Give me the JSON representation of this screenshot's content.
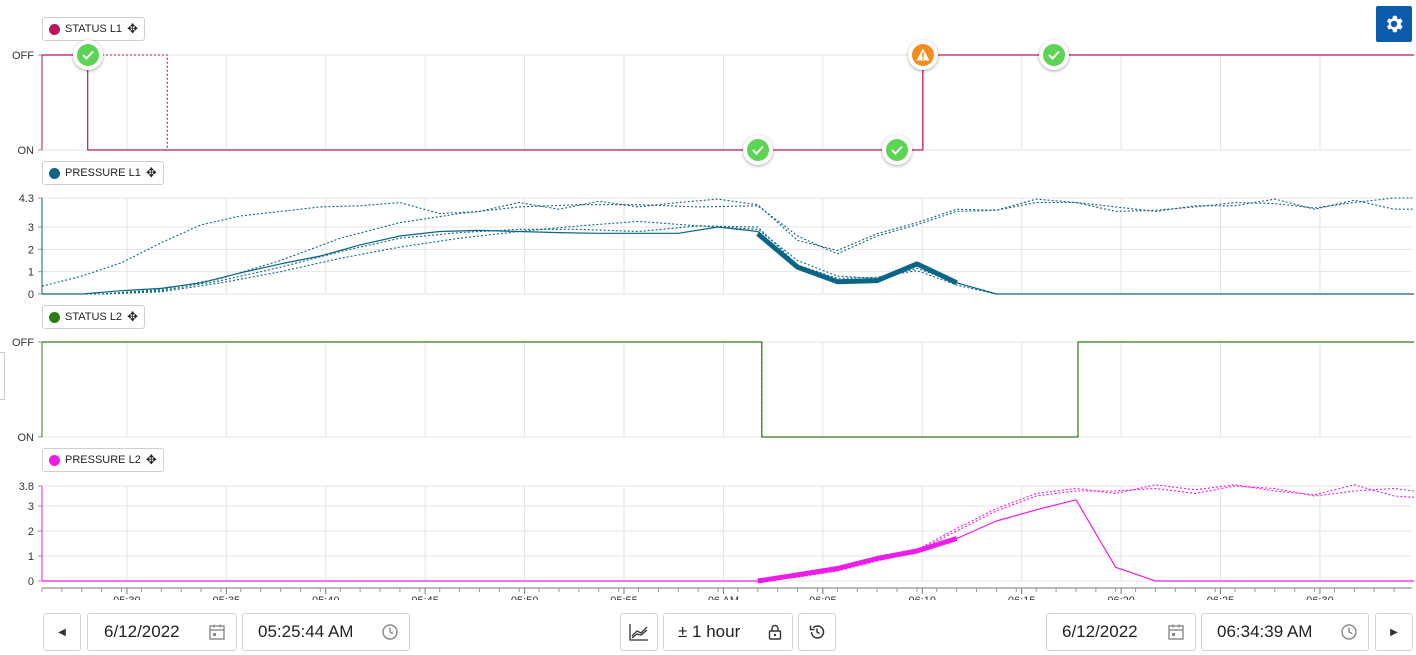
{
  "colors": {
    "status_l1": "#c0145c",
    "pressure_l1": "#0a6587",
    "status_l2": "#2e7d12",
    "pressure_l2": "#ee1ce8",
    "accent": "#0b5cad",
    "ok": "#5bd553",
    "warn": "#f28c1b"
  },
  "legends": {
    "status_l1": "STATUS L1",
    "pressure_l1": "PRESSURE L1",
    "status_l2": "STATUS L2",
    "pressure_l2": "PRESSURE L2"
  },
  "axes": {
    "status_l1": [
      "OFF",
      "ON"
    ],
    "pressure_l1": [
      "4.3",
      "3",
      "2",
      "1",
      "0"
    ],
    "status_l2": [
      "OFF",
      "ON"
    ],
    "pressure_l2": [
      "3.8",
      "3",
      "2",
      "1",
      "0"
    ],
    "x_ticks": [
      "05:30",
      "05:35",
      "05:40",
      "05:45",
      "05:50",
      "05:55",
      "06 AM",
      "06:05",
      "06:10",
      "06:15",
      "06:20",
      "06:25",
      "06:30"
    ]
  },
  "chart_data": [
    {
      "type": "line",
      "name": "STATUS L1",
      "x_unit": "minutes after 05:25:44",
      "series": [
        {
          "style": "solid",
          "points": [
            [
              0,
              1
            ],
            [
              2.3,
              1
            ],
            [
              2.3,
              0
            ],
            [
              44.3,
              0
            ],
            [
              44.3,
              1
            ],
            [
              69,
              1
            ]
          ]
        },
        {
          "style": "dotted",
          "points": [
            [
              0,
              1
            ],
            [
              6.3,
              1
            ],
            [
              6.3,
              0
            ],
            [
              44.3,
              0
            ],
            [
              44.3,
              1
            ],
            [
              69,
              1
            ]
          ]
        }
      ],
      "events": [
        {
          "x": 2.3,
          "state": "OFF",
          "icon": "ok"
        },
        {
          "x": 36,
          "state": "ON",
          "icon": "ok"
        },
        {
          "x": 43,
          "state": "ON",
          "icon": "ok"
        },
        {
          "x": 44.3,
          "state": "OFF",
          "icon": "warn"
        },
        {
          "x": 50.9,
          "state": "OFF",
          "icon": "ok"
        }
      ]
    },
    {
      "type": "line",
      "name": "PRESSURE L1",
      "ylim": [
        0,
        4.3
      ],
      "series": [
        {
          "style": "solid",
          "points": [
            [
              0,
              0
            ],
            [
              2,
              0
            ],
            [
              4,
              0.15
            ],
            [
              6,
              0.25
            ],
            [
              8,
              0.5
            ],
            [
              10,
              0.95
            ],
            [
              12,
              1.35
            ],
            [
              14,
              1.7
            ],
            [
              16,
              2.2
            ],
            [
              18,
              2.6
            ],
            [
              20,
              2.8
            ],
            [
              22,
              2.85
            ],
            [
              24,
              2.8
            ],
            [
              26,
              2.75
            ],
            [
              28,
              2.72
            ],
            [
              30,
              2.72
            ],
            [
              32,
              2.72
            ],
            [
              34,
              3.0
            ],
            [
              36,
              2.8
            ],
            [
              38,
              1.2
            ],
            [
              40,
              0.55
            ],
            [
              42,
              0.6
            ],
            [
              44,
              1.35
            ],
            [
              46,
              0.5
            ],
            [
              48,
              0
            ],
            [
              69,
              0
            ]
          ]
        },
        {
          "style": "bold",
          "points": [
            [
              36,
              2.7
            ],
            [
              38,
              1.2
            ],
            [
              40,
              0.55
            ],
            [
              42,
              0.6
            ],
            [
              44,
              1.35
            ],
            [
              46,
              0.5
            ]
          ]
        },
        {
          "style": "dotted",
          "points": [
            [
              0,
              0.35
            ],
            [
              2,
              0.8
            ],
            [
              4,
              1.4
            ],
            [
              6,
              2.3
            ],
            [
              8,
              3.1
            ],
            [
              10,
              3.5
            ],
            [
              12,
              3.7
            ],
            [
              14,
              3.9
            ],
            [
              16,
              3.95
            ],
            [
              18,
              4.1
            ],
            [
              20,
              3.6
            ],
            [
              22,
              3.7
            ],
            [
              24,
              4.1
            ],
            [
              26,
              3.8
            ],
            [
              28,
              4.15
            ],
            [
              30,
              3.9
            ],
            [
              32,
              4.1
            ],
            [
              34,
              4.25
            ],
            [
              36,
              4.0
            ],
            [
              38,
              2.4
            ],
            [
              40,
              1.95
            ],
            [
              42,
              2.7
            ],
            [
              44,
              3.2
            ],
            [
              46,
              3.8
            ],
            [
              48,
              3.75
            ],
            [
              50,
              4.25
            ],
            [
              52,
              4.1
            ],
            [
              54,
              3.9
            ],
            [
              56,
              3.7
            ],
            [
              58,
              3.95
            ],
            [
              60,
              3.95
            ],
            [
              62,
              4.25
            ],
            [
              64,
              3.8
            ],
            [
              66,
              4.2
            ],
            [
              68,
              3.8
            ],
            [
              69,
              3.8
            ]
          ]
        },
        {
          "style": "dotted",
          "points": [
            [
              0,
              0
            ],
            [
              3,
              0
            ],
            [
              6,
              0.2
            ],
            [
              9,
              0.7
            ],
            [
              12,
              1.5
            ],
            [
              15,
              2.5
            ],
            [
              18,
              3.2
            ],
            [
              21,
              3.6
            ],
            [
              24,
              3.9
            ],
            [
              27,
              4.0
            ],
            [
              30,
              4.0
            ],
            [
              33,
              3.9
            ],
            [
              36,
              3.95
            ],
            [
              38,
              2.6
            ],
            [
              40,
              1.8
            ],
            [
              42,
              2.6
            ],
            [
              44,
              3.1
            ],
            [
              46,
              3.7
            ],
            [
              48,
              3.75
            ],
            [
              50,
              4.1
            ],
            [
              52,
              4.1
            ],
            [
              54,
              3.7
            ],
            [
              56,
              3.75
            ],
            [
              58,
              3.9
            ],
            [
              60,
              4.1
            ],
            [
              62,
              4.05
            ],
            [
              64,
              3.85
            ],
            [
              66,
              4.1
            ],
            [
              68,
              4.3
            ],
            [
              69,
              4.3
            ]
          ]
        },
        {
          "style": "dotted",
          "points": [
            [
              0,
              0
            ],
            [
              3,
              0
            ],
            [
              6,
              0.15
            ],
            [
              9,
              0.6
            ],
            [
              12,
              1.2
            ],
            [
              15,
              1.9
            ],
            [
              18,
              2.5
            ],
            [
              21,
              2.75
            ],
            [
              24,
              2.9
            ],
            [
              27,
              2.9
            ],
            [
              30,
              2.8
            ],
            [
              33,
              3.05
            ],
            [
              36,
              2.9
            ],
            [
              38,
              1.5
            ],
            [
              40,
              0.8
            ],
            [
              42,
              0.7
            ],
            [
              44,
              1.15
            ],
            [
              46,
              0.5
            ],
            [
              48,
              0
            ],
            [
              69,
              0
            ]
          ]
        },
        {
          "style": "dotted",
          "points": [
            [
              0,
              0
            ],
            [
              3,
              0
            ],
            [
              6,
              0.1
            ],
            [
              9,
              0.5
            ],
            [
              12,
              1.0
            ],
            [
              15,
              1.6
            ],
            [
              18,
              2.1
            ],
            [
              21,
              2.5
            ],
            [
              24,
              2.8
            ],
            [
              27,
              3.05
            ],
            [
              30,
              3.25
            ],
            [
              33,
              3.05
            ],
            [
              36,
              3.0
            ],
            [
              38,
              1.3
            ],
            [
              40,
              0.7
            ],
            [
              42,
              0.75
            ],
            [
              44,
              1.05
            ],
            [
              46,
              0.4
            ],
            [
              48,
              0
            ],
            [
              69,
              0
            ]
          ]
        }
      ]
    },
    {
      "type": "line",
      "name": "STATUS L2",
      "series": [
        {
          "style": "solid",
          "points": [
            [
              0,
              1
            ],
            [
              36.2,
              1
            ],
            [
              36.2,
              0
            ],
            [
              52.1,
              0
            ],
            [
              52.1,
              1
            ],
            [
              69,
              1
            ]
          ]
        },
        {
          "style": "dotted",
          "points": [
            [
              0,
              1
            ],
            [
              36.2,
              1
            ],
            [
              36.2,
              0
            ],
            [
              52.1,
              0
            ],
            [
              52.1,
              1
            ],
            [
              69,
              1
            ]
          ]
        }
      ]
    },
    {
      "type": "line",
      "name": "PRESSURE L2",
      "ylim": [
        0,
        3.8
      ],
      "series": [
        {
          "style": "solid",
          "points": [
            [
              0,
              0
            ],
            [
              36,
              0
            ],
            [
              38,
              0.25
            ],
            [
              40,
              0.5
            ],
            [
              42,
              0.9
            ],
            [
              44,
              1.2
            ],
            [
              46,
              1.7
            ],
            [
              48,
              2.4
            ],
            [
              50,
              2.85
            ],
            [
              52,
              3.25
            ],
            [
              54,
              0.55
            ],
            [
              56,
              0
            ],
            [
              69,
              0
            ]
          ]
        },
        {
          "style": "bold",
          "points": [
            [
              36,
              0
            ],
            [
              38,
              0.25
            ],
            [
              40,
              0.5
            ],
            [
              42,
              0.9
            ],
            [
              44,
              1.2
            ],
            [
              46,
              1.7
            ]
          ]
        },
        {
          "style": "dotted",
          "points": [
            [
              0,
              0
            ],
            [
              36,
              0
            ],
            [
              38,
              0.2
            ],
            [
              40,
              0.45
            ],
            [
              42,
              0.85
            ],
            [
              44,
              1.25
            ],
            [
              46,
              2.1
            ],
            [
              48,
              2.9
            ],
            [
              50,
              3.5
            ],
            [
              52,
              3.7
            ],
            [
              54,
              3.5
            ],
            [
              56,
              3.85
            ],
            [
              58,
              3.65
            ],
            [
              60,
              3.85
            ],
            [
              62,
              3.6
            ],
            [
              64,
              3.45
            ],
            [
              66,
              3.85
            ],
            [
              68,
              3.4
            ],
            [
              69,
              3.35
            ]
          ]
        },
        {
          "style": "dotted",
          "points": [
            [
              0,
              0
            ],
            [
              36,
              0
            ],
            [
              38,
              0.15
            ],
            [
              40,
              0.4
            ],
            [
              42,
              0.8
            ],
            [
              44,
              1.2
            ],
            [
              46,
              2.0
            ],
            [
              48,
              2.8
            ],
            [
              50,
              3.4
            ],
            [
              52,
              3.6
            ],
            [
              54,
              3.6
            ],
            [
              56,
              3.7
            ],
            [
              58,
              3.5
            ],
            [
              60,
              3.8
            ],
            [
              62,
              3.7
            ],
            [
              64,
              3.4
            ],
            [
              66,
              3.6
            ],
            [
              68,
              3.7
            ],
            [
              69,
              3.6
            ]
          ]
        }
      ]
    }
  ],
  "controls": {
    "start_date": "6/12/2022",
    "start_time": "05:25:44 AM",
    "range": "± 1 hour",
    "end_date": "6/12/2022",
    "end_time": "06:34:39 AM"
  }
}
